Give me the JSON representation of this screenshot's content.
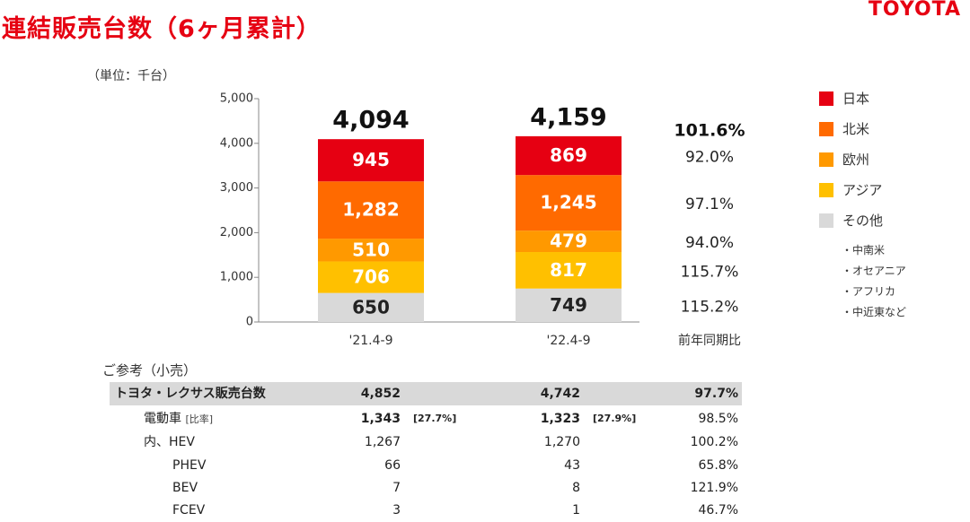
{
  "header": {
    "title": "連結販売台数（6ヶ月累計）",
    "logo": "TOYOTA",
    "unit": "（単位：千台）"
  },
  "chart_data": {
    "type": "bar",
    "stacked": true,
    "categories": [
      "'21.4-9",
      "'22.4-9"
    ],
    "ylim": [
      0,
      5000
    ],
    "yticks": [
      "0",
      "1,000",
      "2,000",
      "3,000",
      "4,000",
      "5,000"
    ],
    "series": [
      {
        "name": "その他",
        "values": [
          650,
          749
        ],
        "labels": [
          "650",
          "749"
        ],
        "color": "#d9d9d9",
        "text_color": "#222222",
        "yoy": "115.2%"
      },
      {
        "name": "アジア",
        "values": [
          706,
          817
        ],
        "labels": [
          "706",
          "817"
        ],
        "color": "#ffc000",
        "text_color": "#ffffff",
        "yoy": "115.7%"
      },
      {
        "name": "欧州",
        "values": [
          510,
          479
        ],
        "labels": [
          "510",
          "479"
        ],
        "color": "#ff9900",
        "text_color": "#ffffff",
        "yoy": "94.0%"
      },
      {
        "name": "北米",
        "values": [
          1282,
          1245
        ],
        "labels": [
          "1,282",
          "1,245"
        ],
        "color": "#ff6a00",
        "text_color": "#ffffff",
        "yoy": "97.1%"
      },
      {
        "name": "日本",
        "values": [
          945,
          869
        ],
        "labels": [
          "945",
          "869"
        ],
        "color": "#e60012",
        "text_color": "#ffffff",
        "yoy": "92.0%"
      }
    ],
    "totals": [
      "4,094",
      "4,159"
    ],
    "total_yoy": "101.6%",
    "yoy_header": "前年同期比"
  },
  "legend": {
    "items": [
      {
        "label": "日本",
        "color": "#e60012"
      },
      {
        "label": "北米",
        "color": "#ff6a00"
      },
      {
        "label": "欧州",
        "color": "#ff9900"
      },
      {
        "label": "アジア",
        "color": "#ffc000"
      },
      {
        "label": "その他",
        "color": "#d9d9d9"
      }
    ],
    "sub_items": [
      "・中南米",
      "・オセアニア",
      "・アフリカ",
      "・中近東など"
    ]
  },
  "reference": {
    "title": "ご参考（小売）",
    "rows": [
      {
        "label": "トヨタ・レクサス販売台数",
        "v1": "4,852",
        "r1": "",
        "v2": "4,742",
        "r2": "",
        "pct": "97.7%"
      },
      {
        "label": "電動車",
        "label_note": "[比率]",
        "v1": "1,343",
        "r1": "[27.7%]",
        "v2": "1,323",
        "r2": "[27.9%]",
        "pct": "98.5%"
      },
      {
        "label": "内、HEV",
        "v1": "1,267",
        "r1": "",
        "v2": "1,270",
        "r2": "",
        "pct": "100.2%"
      },
      {
        "label": "PHEV",
        "v1": "66",
        "r1": "",
        "v2": "43",
        "r2": "",
        "pct": "65.8%"
      },
      {
        "label": "BEV",
        "v1": "7",
        "r1": "",
        "v2": "8",
        "r2": "",
        "pct": "121.9%"
      },
      {
        "label": "FCEV",
        "v1": "3",
        "r1": "",
        "v2": "1",
        "r2": "",
        "pct": "46.7%"
      }
    ]
  }
}
